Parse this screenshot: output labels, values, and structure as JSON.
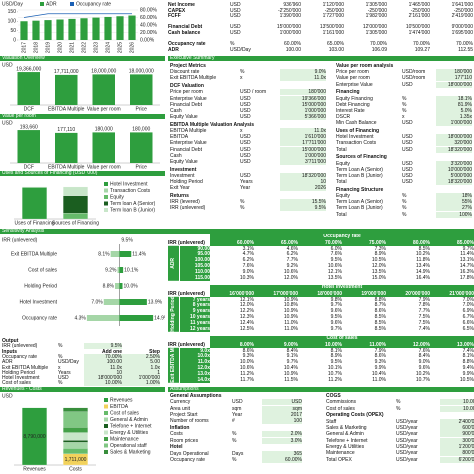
{
  "headers": [
    "Valuation Overview",
    "Executive Summary",
    "Value per room",
    "Uses and Sources of Financing (USD '000)",
    "Sensitivity Analysis",
    "Revenues - Costs",
    "Assumptions"
  ],
  "top_table": {
    "rows": [
      [
        "Net Income",
        "USD",
        "936'960",
        "1'120'000",
        "1'305'000",
        "1'465'000",
        "1'641'000"
      ],
      [
        "CAPEX",
        "USD",
        "-2'250'000",
        "-250'000",
        "-250'000",
        "-250'000",
        "-250'000"
      ],
      [
        "FCFF",
        "USD",
        "1'390'000",
        "1'727'000",
        "1'982'000",
        "2'161'000",
        "2'419'000"
      ],
      [
        "Financial Debt",
        "USD",
        "15'000'000",
        "13'500'000",
        "12'000'000",
        "10'500'000",
        "9'000'000"
      ],
      [
        "Cash balance",
        "USD",
        "1'000'000",
        "1'161'000",
        "1'305'000",
        "1'474'000",
        "1'695'000"
      ],
      [
        "Occupancy rate",
        "%",
        "60.00%",
        "65.00%",
        "70.00%",
        "70.00%",
        "70.00%"
      ],
      [
        "ADR",
        "USD/Day",
        "100.00",
        "103.00",
        "106.09",
        "109.27",
        "112.55"
      ]
    ]
  },
  "chart_data": [
    {
      "type": "bar-line",
      "y_label": "USD/Day",
      "categories": [
        "2017",
        "2018",
        "2019",
        "2020",
        "2021",
        "2022",
        "2023",
        "2024",
        "2025",
        "2026"
      ],
      "series": [
        {
          "name": "ADR",
          "color": "#2e9e3e",
          "values": [
            100,
            103,
            106.09,
            109.27,
            112.55,
            115.93,
            119.41,
            122.99,
            126.68,
            130.48
          ]
        },
        {
          "name": "Occupancy rate",
          "color": "#1a5fb4",
          "axis": "y2",
          "values": [
            60,
            65,
            70,
            70,
            70,
            70,
            70,
            70,
            70,
            70
          ]
        }
      ],
      "ylim": [
        0,
        160
      ],
      "yticks": [
        0,
        50,
        100,
        150
      ],
      "y2lim": [
        0,
        80
      ],
      "y2ticks": [
        {
          "value": 0,
          "label": "0.00%"
        },
        {
          "value": 20,
          "label": "20.00%"
        },
        {
          "value": 40,
          "label": "40.00%"
        },
        {
          "value": 60,
          "label": "60.00%"
        },
        {
          "value": 80,
          "label": "80.00%"
        }
      ]
    },
    {
      "type": "bar",
      "y_label": "USD",
      "categories": [
        "DCF",
        "EBITDA Multiple",
        "Value per room",
        "Price"
      ],
      "values": [
        19366000,
        17711000,
        18000000,
        18000000
      ],
      "value_labels": [
        "19,366,000",
        "17,711,000",
        "18,000,000",
        "18,000,000"
      ],
      "color": "#2e9e3e",
      "ylim": [
        0,
        20000000
      ]
    },
    {
      "type": "bar",
      "y_label": "USD",
      "categories": [
        "DCF",
        "EBITDA Multiple",
        "Value per room",
        "Price"
      ],
      "values": [
        193660,
        177110,
        180000,
        180000
      ],
      "value_labels": [
        "193,660",
        "177,110",
        "180,000",
        "180,000"
      ],
      "color": "#2e9e3e",
      "ylim": [
        0,
        200000
      ]
    },
    {
      "type": "stacked-bar",
      "categories": [
        "Uses of Financing",
        "Sources of Financing"
      ],
      "ylim": [
        0,
        20000
      ],
      "series": [
        {
          "name": "Hotel Investment",
          "color": "#2e9e3e",
          "values": [
            18000,
            null
          ]
        },
        {
          "name": "Transaction Costs",
          "color": "#a5d6a7",
          "values": [
            320,
            null
          ]
        },
        {
          "name": "Equity",
          "color": "#66bb6a",
          "values": [
            null,
            3320
          ]
        },
        {
          "name": "Term loan A (Senior)",
          "color": "#1b5e20",
          "values": [
            null,
            10000
          ]
        },
        {
          "name": "Term loan B (Junior)",
          "color": "#c8e6c9",
          "values": [
            null,
            5000
          ]
        }
      ]
    },
    {
      "type": "tornado",
      "title": "IRR (unlevered)",
      "base": 9.5,
      "base_label": "9.5%",
      "xlim": [
        0,
        16
      ],
      "categories": [
        "Exit EBITDA Multiple",
        "Cost of sales",
        "Holding Period",
        "Hotel Investment",
        "Occupancy rate"
      ],
      "series": [
        {
          "name": "Low",
          "color": "#a5d6a7",
          "values": [
            8.1,
            9.2,
            8.8,
            7.0,
            4.3
          ],
          "value_labels": [
            "8.1%",
            "9.2%",
            "8.8%",
            "7.0%",
            "4.3%"
          ]
        },
        {
          "name": "High",
          "color": "#2e9e3e",
          "values": [
            11.4,
            10.1,
            10.0,
            13.9,
            14.9
          ],
          "value_labels": [
            "11.4%",
            "10.1%",
            "10.0%",
            "13.9%",
            "14.9%"
          ]
        }
      ]
    },
    {
      "type": "stacked-bar",
      "y_label": "USD",
      "categories": [
        "Revenues",
        "Costs"
      ],
      "ylim": [
        0,
        10000000
      ],
      "series": [
        {
          "name": "Revenues",
          "color": "#2e9e3e",
          "values": [
            8790000,
            null
          ],
          "value_labels": [
            "8,790,000",
            null
          ]
        },
        {
          "name": "EBITDA",
          "color": "#f2d25c",
          "values": [
            null,
            1711000
          ],
          "value_labels": [
            null,
            "1,711,000"
          ]
        },
        {
          "name": "Cost of sales",
          "color": "#66bb6a",
          "values": [
            null,
            879000
          ]
        },
        {
          "name": "General & Admin",
          "color": "#a5d6a7",
          "values": [
            null,
            900000
          ]
        },
        {
          "name": "Telefone + Internet",
          "color": "#1b5e20",
          "values": [
            null,
            300000
          ]
        },
        {
          "name": "Energy & Utilities",
          "color": "#c8e6c9",
          "values": [
            null,
            1200000
          ]
        },
        {
          "name": "Maintenance",
          "color": "#43a047",
          "values": [
            null,
            800000
          ]
        },
        {
          "name": "Operational staff",
          "color": "#81c784",
          "values": [
            null,
            2400000
          ]
        },
        {
          "name": "Sales & Marketing",
          "color": "#388e3c",
          "values": [
            null,
            600000
          ]
        }
      ]
    }
  ],
  "executive_summary": {
    "left": [
      {
        "title": "Project Metrics",
        "rows": [
          [
            "Discount rate",
            "%",
            "9.0%"
          ],
          [
            "Exit EBITDA Multiple",
            "x",
            "11.0x"
          ]
        ]
      },
      {
        "title": "DCF Valuation",
        "rows": [
          [
            "Price per room",
            "USD / room",
            "180'000"
          ],
          [
            "Enterprise Value",
            "USD",
            "19'366'000"
          ],
          [
            "Financial Debt",
            "USD",
            "15'000'000"
          ],
          [
            "Cash",
            "USD",
            "1'000'000"
          ],
          [
            "Equity Value",
            "USD",
            "5'366'000"
          ]
        ]
      },
      {
        "title": "EBITDA Multiple Valuation Analysis",
        "rows": [
          [
            "EBITDA Multiple",
            "x",
            "11.0x"
          ],
          [
            "EBITDA",
            "USD",
            "1'610'000"
          ],
          [
            "Enterprise Value",
            "USD",
            "17'711'000"
          ],
          [
            "Financial Debt",
            "USD",
            "15'000'000"
          ],
          [
            "Cash",
            "USD",
            "1'000'000"
          ],
          [
            "Equity Value",
            "USD",
            "3'711'000"
          ]
        ]
      },
      {
        "title": "Investment",
        "rows": [
          [
            "Investment",
            "USD",
            "18'320'000"
          ],
          [
            "Holding Period",
            "Years",
            "10"
          ],
          [
            "Exit Year",
            "Year",
            "2026"
          ]
        ]
      },
      {
        "title": "Returns",
        "rows": [
          [
            "IRR (levered)",
            "%",
            "15.5%"
          ],
          [
            "IRR (unlevered)",
            "%",
            "9.5%"
          ]
        ]
      }
    ],
    "right": [
      {
        "title": "Value per room analysis",
        "rows": [
          [
            "Price per room",
            "USD/room",
            "180'000"
          ],
          [
            "Value per room",
            "USD/room",
            "177'110"
          ],
          [
            "Enterprise Value",
            "USD",
            "18'000'000"
          ]
        ]
      },
      {
        "title": "Financing",
        "rows": [
          [
            "Equity Financing",
            "%",
            "18.1%"
          ],
          [
            "Debt Financing",
            "%",
            "81.9%"
          ],
          [
            "Interest Rate",
            "%",
            "5.0%"
          ],
          [
            "DSCR",
            "x",
            "1.35x"
          ],
          [
            "Min Cash Balance",
            "USD",
            "1'000'000"
          ]
        ]
      },
      {
        "title": "Uses of Financing",
        "rows": [
          [
            "Hotel Investment",
            "USD",
            "18'000'000"
          ],
          [
            "Transaction Costs",
            "USD",
            "320'000"
          ],
          [
            "Total",
            "USD",
            "18'320'000"
          ]
        ]
      },
      {
        "title": "Sources of Financing",
        "rows": [
          [
            "Equity",
            "USD",
            "3'320'000"
          ],
          [
            "Term Loan A (Senior)",
            "USD",
            "10'000'000"
          ],
          [
            "Term Loan B (Junior)",
            "USD",
            "5'000'000"
          ],
          [
            "Total",
            "USD",
            "18'320'000"
          ]
        ]
      },
      {
        "title": "Financing Structure",
        "rows": [
          [
            "Equity",
            "%",
            "18%"
          ],
          [
            "Term Loan A (Senior)",
            "%",
            "55%"
          ],
          [
            "Term Loan B (Junior)",
            "%",
            "27%"
          ],
          [
            "Total",
            "%",
            "100%"
          ]
        ]
      }
    ]
  },
  "output": [
    {
      "title": "Output",
      "rows": [
        [
          "IRR (unlevered)",
          "%",
          "9.5%"
        ]
      ]
    },
    {
      "title": "Inputs",
      "columns": [
        "Add one",
        "Step"
      ],
      "rows": [
        [
          "Occupancy rate",
          "%",
          "70.00%",
          "2.50%"
        ],
        [
          "ADR",
          "USD/Day",
          "100.00",
          "5.00"
        ],
        [
          "Exit EBITDA Multiple",
          "x",
          "11.0x",
          "1.0x"
        ],
        [
          "Holding Period",
          "Years",
          "10",
          "1"
        ],
        [
          "Hotel Investment",
          "USD",
          "18'000'000",
          "1'000'000"
        ],
        [
          "Cost of sales",
          "%",
          "10.00%",
          "1.00%"
        ]
      ]
    }
  ],
  "sensitivity": [
    {
      "corner": "IRR (unlevered)",
      "title": "Occupancy rate",
      "row_label": "ADR",
      "columns": [
        "60.00%",
        "65.00%",
        "70.00%",
        "75.00%",
        "80.00%",
        "85.00%"
      ],
      "row_headers": [
        "90.00",
        "95.00",
        "100.00",
        "105.00",
        "110.00",
        "115.00"
      ],
      "cells": [
        [
          "3.1%",
          "4.6%",
          "6.0%",
          "7.3%",
          "8.5%",
          "9.7%"
        ],
        [
          "4.7%",
          "6.2%",
          "7.6%",
          "8.9%",
          "10.2%",
          "11.4%"
        ],
        [
          "6.2%",
          "7.7%",
          "9.5%",
          "10.5%",
          "11.8%",
          "13.1%"
        ],
        [
          "7.6%",
          "9.2%",
          "10.6%",
          "12.0%",
          "13.4%",
          "14.7%"
        ],
        [
          "9.0%",
          "10.6%",
          "12.1%",
          "13.5%",
          "14.9%",
          "16.3%"
        ],
        [
          "10.3%",
          "12.0%",
          "13.5%",
          "15.0%",
          "16.4%",
          "17.8%"
        ]
      ]
    },
    {
      "corner": "IRR (unlevered)",
      "title": "Hotel Investment",
      "row_label": "Holding Period",
      "columns": [
        "16'000'000",
        "17'000'000",
        "18'000'000",
        "19'000'000",
        "20'000'000",
        "21'000'000"
      ],
      "row_headers": [
        "7 years",
        "8 years",
        "9 years",
        "10 years",
        "11 years",
        "12 years"
      ],
      "cells": [
        [
          "12.1%",
          "10.9%",
          "9.8%",
          "8.8%",
          "7.9%",
          "7.0%"
        ],
        [
          "12.0%",
          "10.8%",
          "9.7%",
          "8.7%",
          "7.8%",
          "7.0%"
        ],
        [
          "12.2%",
          "10.9%",
          "9.6%",
          "8.6%",
          "7.7%",
          "6.9%"
        ],
        [
          "12.3%",
          "10.9%",
          "9.5%",
          "8.5%",
          "7.5%",
          "6.7%"
        ],
        [
          "12.4%",
          "11.0%",
          "9.6%",
          "8.5%",
          "7.5%",
          "6.6%"
        ],
        [
          "12.5%",
          "11.0%",
          "9.7%",
          "8.5%",
          "7.4%",
          "6.5%"
        ]
      ]
    },
    {
      "corner": "IRR (unlevered)",
      "title": "Cost of sales",
      "row_label": "Exit EBITDA Multiple",
      "columns": [
        "8.00%",
        "9.00%",
        "10.00%",
        "11.00%",
        "12.00%",
        "13.00%"
      ],
      "row_headers": [
        "9.0x",
        "10.0x",
        "11.0x",
        "12.0x",
        "13.0x",
        "14.0x"
      ],
      "cells": [
        [
          "8.6%",
          "8.4%",
          "8.1%",
          "7.9%",
          "7.6%",
          "7.4%"
        ],
        [
          "9.3%",
          "9.1%",
          "8.9%",
          "8.6%",
          "8.4%",
          "8.1%"
        ],
        [
          "10.0%",
          "9.7%",
          "9.5%",
          "9.3%",
          "9.0%",
          "8.8%"
        ],
        [
          "10.6%",
          "10.4%",
          "10.1%",
          "9.9%",
          "9.6%",
          "9.4%"
        ],
        [
          "11.2%",
          "10.9%",
          "10.7%",
          "10.4%",
          "10.2%",
          "9.9%"
        ],
        [
          "11.7%",
          "11.5%",
          "11.2%",
          "11.0%",
          "10.7%",
          "10.5%"
        ]
      ]
    }
  ],
  "assumptions": {
    "left": [
      {
        "title": "General Assumptions",
        "rows": [
          [
            "Currency",
            "USD",
            "USD"
          ],
          [
            "Area unit",
            "sqm",
            "sqm"
          ],
          [
            "Project Start",
            "Year",
            "2017"
          ],
          [
            "Number of rooms",
            "#",
            "100"
          ]
        ]
      },
      {
        "title": "Inflation",
        "rows": [
          [
            "Costs",
            "%",
            "2.0%"
          ],
          [
            "Room prices",
            "%",
            "3.0%"
          ]
        ]
      },
      {
        "title": "Hotel",
        "rows": [
          [
            "Days Operational",
            "Days",
            "365"
          ],
          [
            "Occupancy rate",
            "%",
            "60.00%"
          ]
        ]
      }
    ],
    "right": [
      {
        "title": "COGS",
        "rows": [
          [
            "Commissions",
            "%",
            "10.00%"
          ],
          [
            "Cost of sales",
            "%",
            "10.00%"
          ]
        ]
      },
      {
        "title": "Operating Costs (OPEX)",
        "rows": [
          [
            "Staff",
            "USD/year",
            "2'400'000"
          ],
          [
            "Sales & Marketing",
            "USD/year",
            "600'000"
          ],
          [
            "General & Admin",
            "USD/year",
            "900'000"
          ],
          [
            "Telefone + Internet",
            "USD/year",
            "300'000"
          ],
          [
            "Energy & Utilities",
            "USD/year",
            "1'200'000"
          ],
          [
            "Maintenance",
            "USD/year",
            "800'000"
          ],
          [
            "Total OPEX",
            "USD/year",
            "6'200'000"
          ]
        ]
      }
    ]
  }
}
